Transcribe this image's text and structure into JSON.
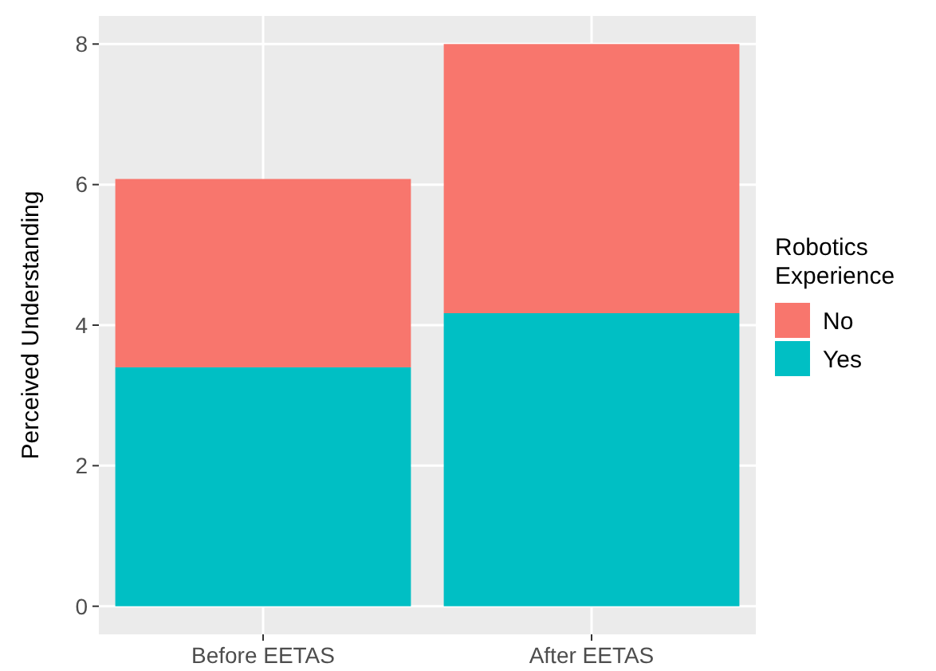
{
  "chart_data": {
    "type": "bar",
    "ylabel": "Perceived Understanding",
    "legend_title": "Robotics\nExperience",
    "categories": [
      "Before EETAS",
      "After EETAS"
    ],
    "stacked": true,
    "series": [
      {
        "name": "Yes",
        "color": "#00bfc4",
        "values": [
          3.4,
          4.17
        ]
      },
      {
        "name": "No",
        "color": "#f8766d",
        "values": [
          2.68,
          3.83
        ]
      }
    ],
    "ylim": [
      -0.4,
      8.4
    ],
    "yticks": [
      0,
      2,
      4,
      6,
      8
    ],
    "grid": true,
    "legend": "right"
  }
}
